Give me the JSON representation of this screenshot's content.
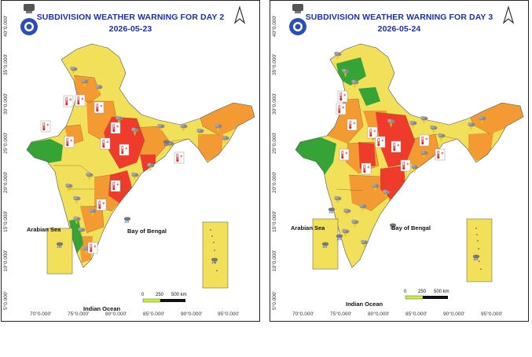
{
  "colors": {
    "title": "#1a2fc0",
    "no_warning": "#36a336",
    "watch": "#f2e05a",
    "alert": "#f39a33",
    "warning": "#ef3b2c",
    "inset": "#f2e05a",
    "water": "#ffffff",
    "scale_green": "#c9f23a"
  },
  "icons": [
    "emblem-icon",
    "north-arrow-icon",
    "thunderstorm-icon",
    "heat-thermometer-icon",
    "heavy-rain-icon"
  ],
  "panels": [
    {
      "title": "SUBDIVISION WEATHER WARNING FOR DAY 2",
      "date": "2026-05-23",
      "lat_labels": [
        "40°0.000'",
        "35°0.000'",
        "30°0.000'",
        "25°0.000'",
        "20°0.000'",
        "15°0.000'",
        "10°0.000'",
        "5°0.000'"
      ],
      "lon_labels": [
        "70°0.000'",
        "75°0.000'",
        "80°0.000'",
        "85°0.000'",
        "90°0.000'",
        "95°0.000'"
      ],
      "sea_labels": {
        "arabian": "Arabian Sea",
        "bengal": "Bay of Bengal",
        "indian": "Indian Ocean"
      },
      "scale": {
        "zero": "0",
        "mid": "250",
        "end": "500 km"
      }
    },
    {
      "title": "SUBDIVISION WEATHER WARNING FOR DAY 3",
      "date": "2026-05-24",
      "lat_labels": [
        "40°0.000'",
        "35°0.000'",
        "30°0.000'",
        "25°0.000'",
        "20°0.000'",
        "15°0.000'",
        "10°0.000'",
        "5°0.000'"
      ],
      "lon_labels": [
        "70°0.000'",
        "75°0.000'",
        "80°0.000'",
        "85°0.000'",
        "90°0.000'",
        "95°0.000'"
      ],
      "sea_labels": {
        "arabian": "Arabian Sea",
        "bengal": "Bay of Bengal",
        "indian": "Indian Ocean"
      },
      "scale": {
        "zero": "0",
        "mid": "250",
        "end": "500 km"
      }
    }
  ]
}
